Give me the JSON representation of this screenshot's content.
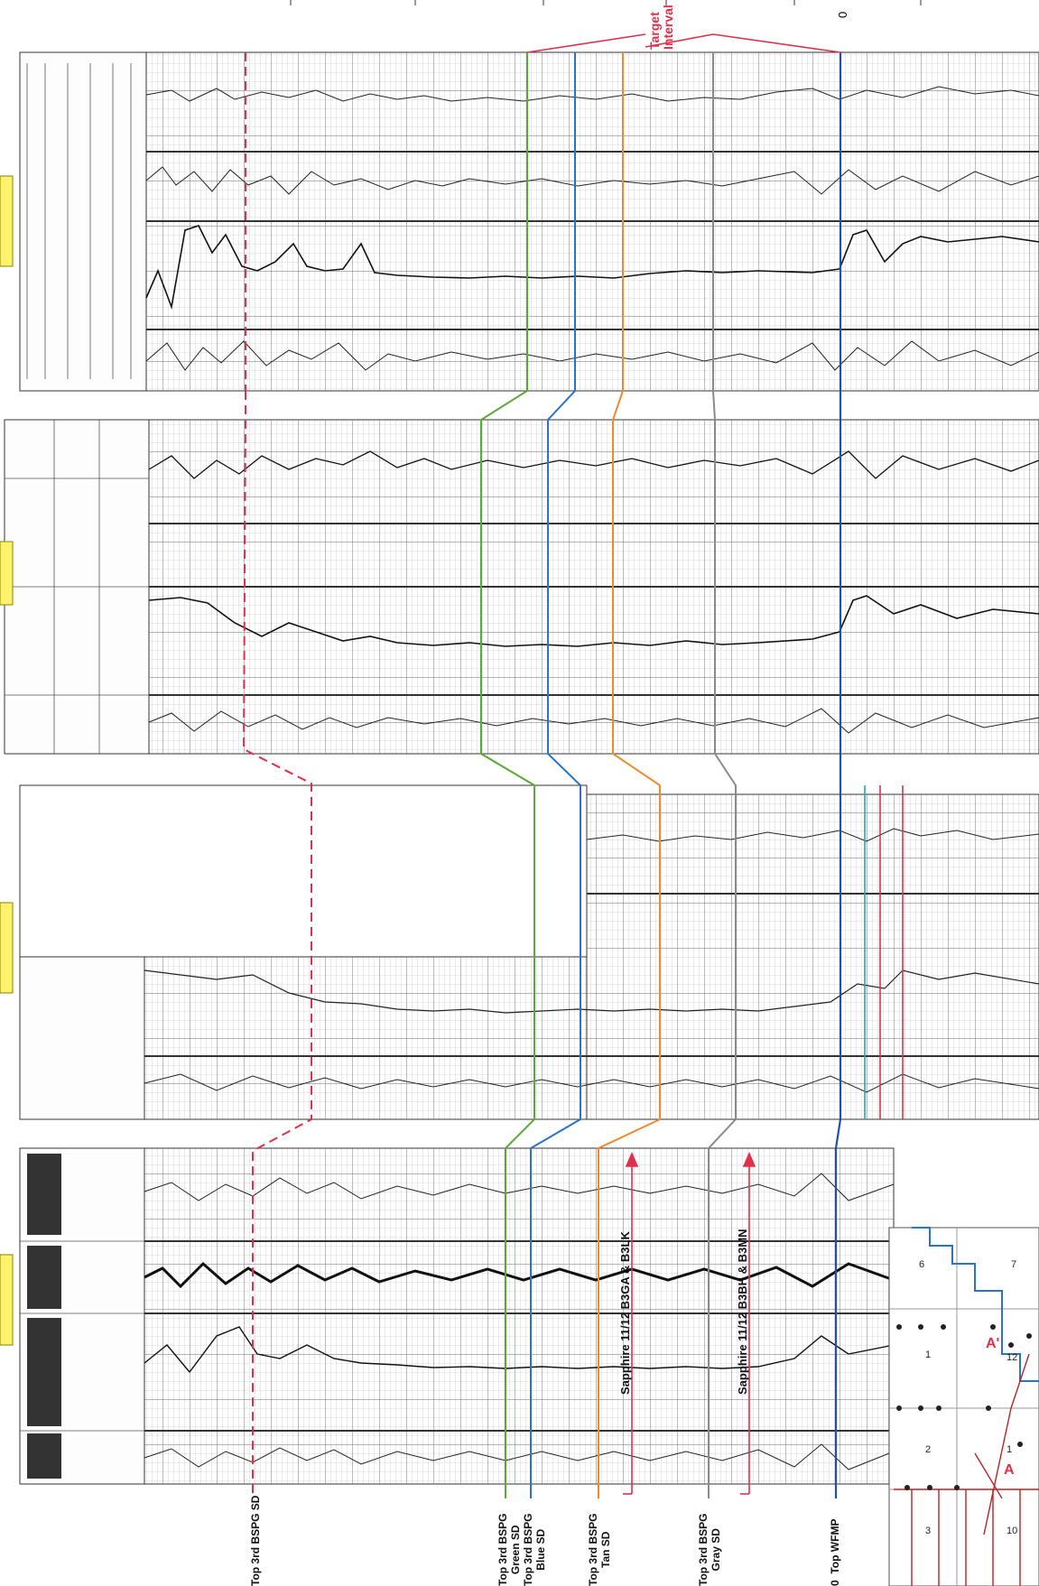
{
  "header": {
    "target_label_line1": "Target",
    "target_label_line2": "Interval",
    "zero_mark": "0"
  },
  "markers": {
    "top_3rd_bspg_sd": "Top 3rd BSPG SD",
    "green": [
      "Top 3rd BSPG",
      "Green SD"
    ],
    "blue": [
      "Top 3rd BSPG",
      "Blue SD"
    ],
    "tan": [
      "Top 3rd BSPG",
      "Tan SD"
    ],
    "gray": [
      "Top 3rd BSPG",
      "Gray SD"
    ],
    "wfmp": "Top WFMP",
    "wfmp_prefix": "0"
  },
  "annotations": {
    "sapphire_a": "Sapphire 11/12 B3GA & B3LK",
    "sapphire_b": "Sapphire 11/12 B3BH & B3MN"
  },
  "map_inset": {
    "section_numbers": [
      "6",
      "7",
      "1",
      "12",
      "2",
      "1",
      "3",
      "10"
    ],
    "labels": [
      "A'",
      "A"
    ]
  },
  "colors": {
    "red": "#e0304a",
    "green": "#5aa83a",
    "blue": "#2a73c8",
    "tan": "#f08a2c",
    "gray": "#8a8a8a",
    "navy": "#1f4fb5",
    "highlight": "#fff36b"
  }
}
